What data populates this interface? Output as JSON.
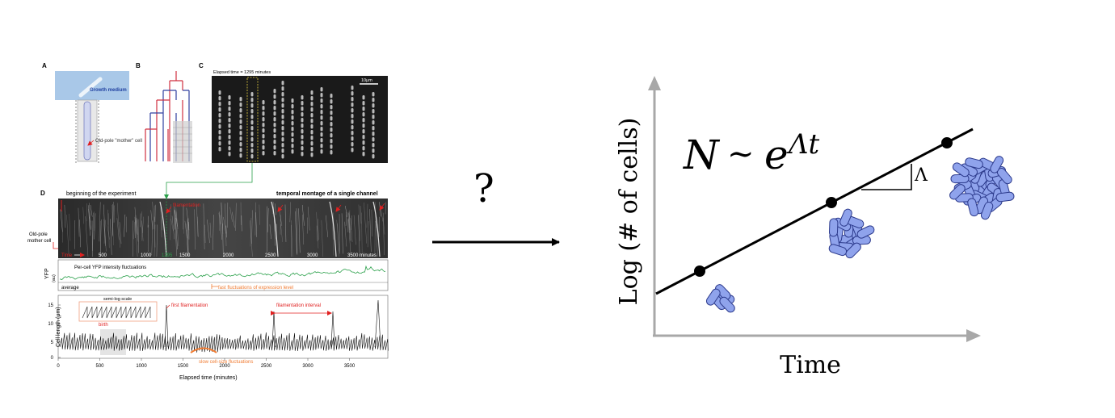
{
  "figure": {
    "panel_a": {
      "letter": "A",
      "growth_medium": "Growth medium",
      "mother_cell": "Old-pole \"mother\" cell"
    },
    "panel_b": {
      "letter": "B"
    },
    "panel_c": {
      "letter": "C",
      "elapsed": "Elapsed time = 1295 minutes",
      "scalebar": "10μm"
    },
    "panel_d": {
      "letter": "D",
      "beginning": "beginning of the experiment",
      "montage_title": "temporal montage of a single channel",
      "filamentation": "filamentation",
      "old_pole": "Old-pole",
      "mother_cell": "mother cell",
      "time_label": "Time",
      "montage_ticks": [
        "500",
        "1000",
        "1295",
        "1500",
        "2000",
        "2500",
        "3000",
        "3500 minutes"
      ],
      "yfp_axis": "YFP",
      "yfp_unit": "(au)",
      "yfp_title": "Per-cell YFP intensity fluctuations",
      "average": "average",
      "fast_fluct": "fast fluctuations of expression level",
      "length_axis": "Cell length (μm)",
      "semilog": "semi-log scale",
      "birth": "birth",
      "first_fil": "first filamentation",
      "fil_interval": "filamentation interval",
      "slow_fluct": "slow cell-size fluctuations",
      "y_ticks": [
        "0",
        "5",
        "10",
        "15"
      ],
      "x_ticks": [
        "0",
        "500",
        "1000",
        "1500",
        "2000",
        "2500",
        "3000",
        "3500"
      ],
      "x_axis": "Elapsed time (minutes)"
    }
  },
  "question_mark": "?",
  "schematic": {
    "formula_n": "N",
    "formula_sim": "∼",
    "formula_e": "e",
    "formula_exp": "Λt",
    "slope": "Λ",
    "y_label": "Log (# of cells)",
    "x_label": "Time"
  },
  "colors": {
    "cell_fill": "#8fa3ec",
    "cell_stroke": "#2c3a8c",
    "axis_gray": "#a8a8a8",
    "accent_red": "#e02020",
    "accent_green": "#2aa04a",
    "accent_orange": "#f07a30"
  }
}
